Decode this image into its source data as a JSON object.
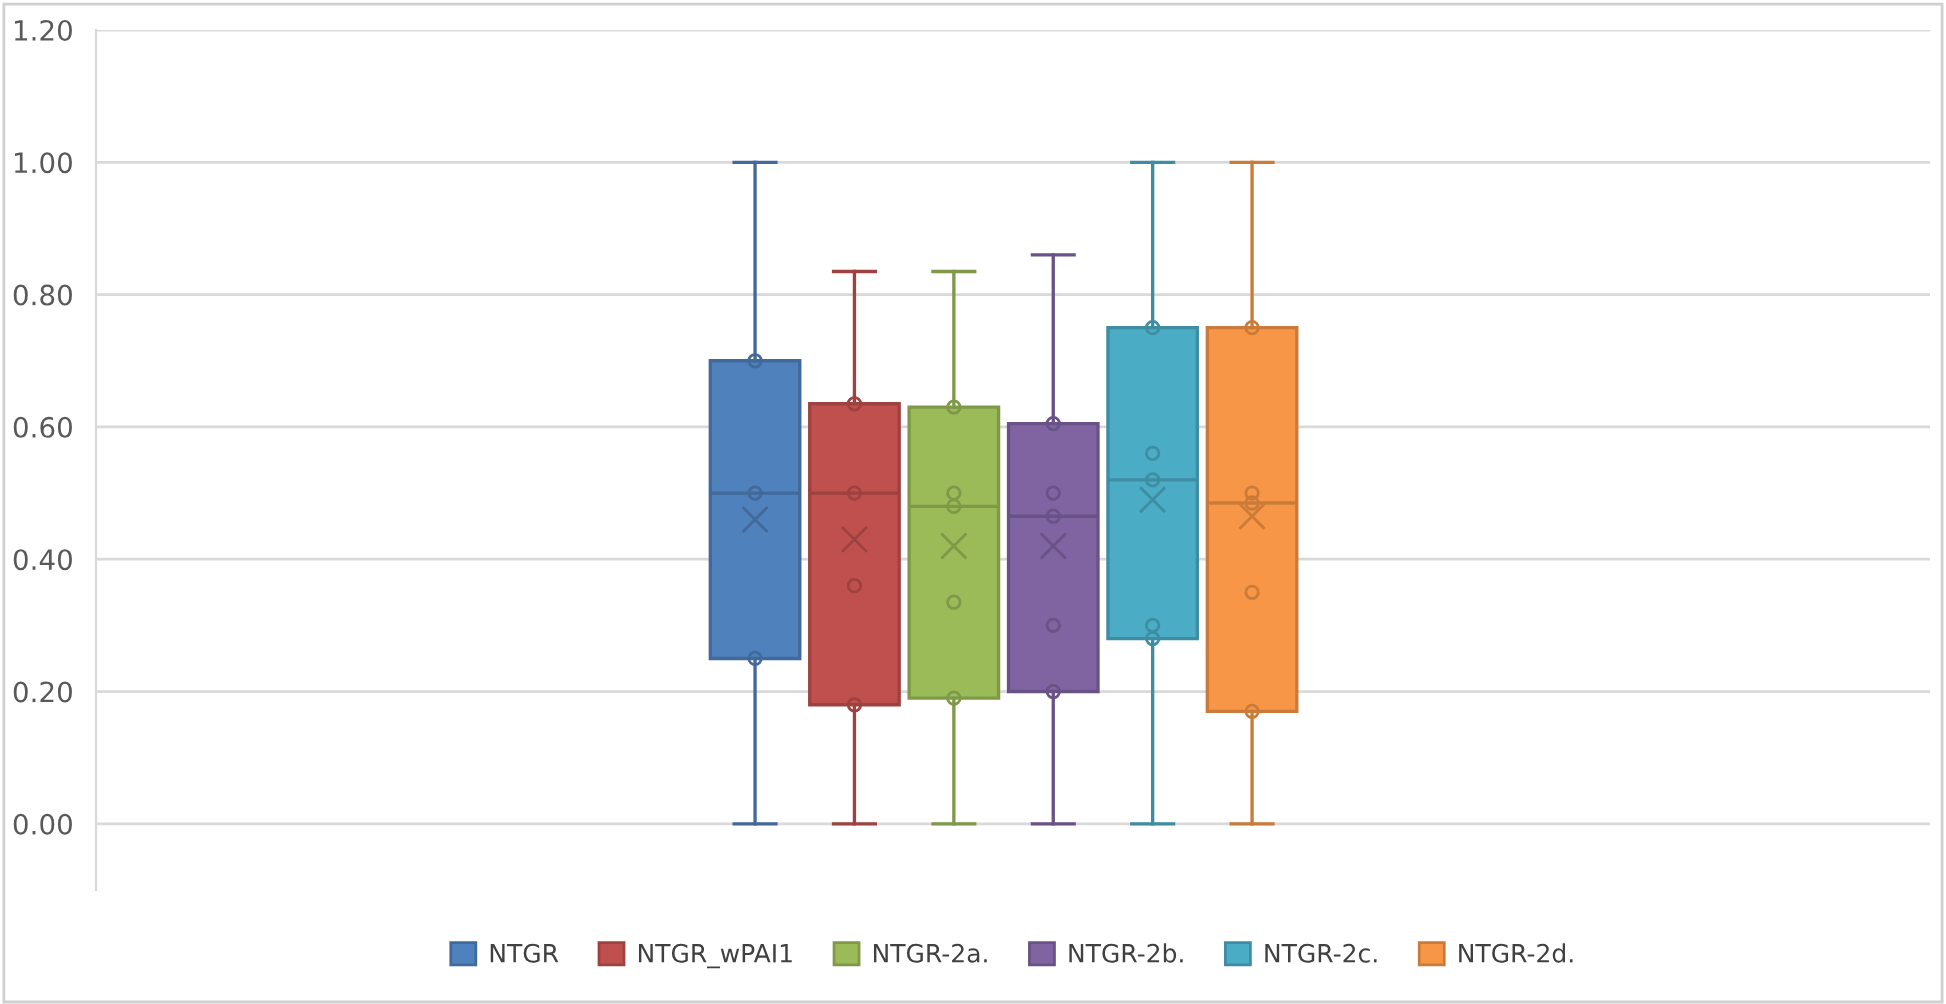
{
  "chart_data": {
    "type": "box",
    "categories": [
      null
    ],
    "series": [
      {
        "name": "NTGR",
        "color": "#4f81bd",
        "boxes": [
          {
            "low": 0,
            "q1": 0.25,
            "median": 0.5,
            "q3": 0.7,
            "high": 1.0,
            "mean": 0.46,
            "outliers": [
              0.7,
              0.5,
              0.25
            ]
          }
        ]
      },
      {
        "name": "NTGR_wPAI1",
        "color": "#c0504d",
        "boxes": [
          {
            "low": 0,
            "q1": 0.18,
            "median": 0.5,
            "q3": 0.635,
            "high": 0.835,
            "mean": 0.43,
            "outliers": [
              0.635,
              0.5,
              0.36,
              0.18
            ]
          }
        ]
      },
      {
        "name": "NTGR-2a.",
        "color": "#9bbb59",
        "boxes": [
          {
            "low": 0,
            "q1": 0.19,
            "median": 0.48,
            "q3": 0.63,
            "high": 0.835,
            "mean": 0.42,
            "outliers": [
              0.63,
              0.5,
              0.48,
              0.335,
              0.19
            ]
          }
        ]
      },
      {
        "name": "NTGR-2b.",
        "color": "#8064a2",
        "boxes": [
          {
            "low": 0,
            "q1": 0.2,
            "median": 0.465,
            "q3": 0.605,
            "high": 0.86,
            "mean": 0.42,
            "outliers": [
              0.605,
              0.5,
              0.465,
              0.3,
              0.2
            ]
          }
        ]
      },
      {
        "name": "NTGR-2c.",
        "color": "#4bacc6",
        "boxes": [
          {
            "low": 0,
            "q1": 0.28,
            "median": 0.52,
            "q3": 0.75,
            "high": 1.0,
            "mean": 0.49,
            "outliers": [
              0.75,
              0.56,
              0.52,
              0.3,
              0.28
            ]
          }
        ]
      },
      {
        "name": "NTGR-2d.",
        "color": "#f79646",
        "boxes": [
          {
            "low": 0,
            "q1": 0.17,
            "median": 0.485,
            "q3": 0.75,
            "high": 1.0,
            "mean": 0.465,
            "outliers": [
              0.75,
              0.5,
              0.485,
              0.35,
              0.17
            ]
          }
        ]
      }
    ],
    "ylim": [
      -0.1,
      1.2
    ],
    "yticks": [
      {
        "value": 0,
        "label": "0.00"
      },
      {
        "value": 0.2,
        "label": "0.20"
      },
      {
        "value": 0.4,
        "label": "0.40"
      },
      {
        "value": 0.6,
        "label": "0.60"
      },
      {
        "value": 0.8,
        "label": "0.80"
      },
      {
        "value": 1.0,
        "label": "1.00"
      },
      {
        "value": 1.2,
        "label": "1.20"
      }
    ],
    "grid": "y",
    "legend": "bottom",
    "tick_labels": "y"
  }
}
